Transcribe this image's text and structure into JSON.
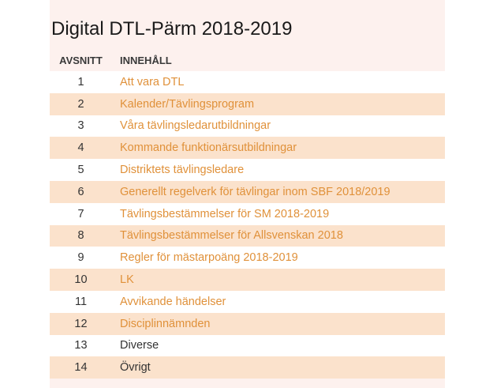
{
  "page": {
    "title": "Digital DTL-Pärm 2018-2019"
  },
  "table": {
    "headers": {
      "number": "AVSNITT",
      "content": "INNEHÅLL"
    },
    "rows": [
      {
        "number": "1",
        "content": "Att vara DTL",
        "is_link": true
      },
      {
        "number": "2",
        "content": "Kalender/Tävlingsprogram",
        "is_link": true
      },
      {
        "number": "3",
        "content": "Våra tävlingsledarutbildningar",
        "is_link": true
      },
      {
        "number": "4",
        "content": "Kommande funktionärsutbildningar",
        "is_link": true
      },
      {
        "number": "5",
        "content": "Distriktets tävlingsledare",
        "is_link": true
      },
      {
        "number": "6",
        "content": "Generellt regelverk för tävlingar inom SBF 2018/2019",
        "is_link": true
      },
      {
        "number": "7",
        "content": "Tävlingsbestämmelser för SM 2018-2019",
        "is_link": true
      },
      {
        "number": "8",
        "content": "Tävlingsbestämmelser för Allsvenskan 2018",
        "is_link": true
      },
      {
        "number": "9",
        "content": "Regler för mästarpoäng 2018-2019",
        "is_link": true
      },
      {
        "number": "10",
        "content": "LK",
        "is_link": true
      },
      {
        "number": "11",
        "content": "Avvikande händelser",
        "is_link": true
      },
      {
        "number": "12",
        "content": "Disciplinnämnden",
        "is_link": true
      },
      {
        "number": "13",
        "content": "Diverse",
        "is_link": false
      },
      {
        "number": "14",
        "content": "Övrigt",
        "is_link": false
      }
    ]
  },
  "colors": {
    "link": "#e0913a",
    "row_stripe": "#fbe2cc",
    "panel_background": "#fdf1ee"
  }
}
